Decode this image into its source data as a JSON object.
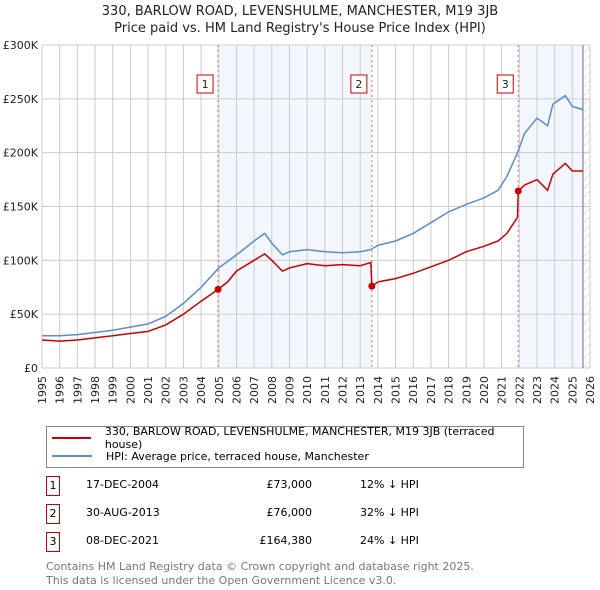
{
  "chart_data": {
    "type": "line",
    "title": "330, BARLOW ROAD, LEVENSHULME, MANCHESTER, M19 3JB",
    "subtitle": "Price paid vs. HM Land Registry's House Price Index (HPI)",
    "xlim": [
      1995,
      2026
    ],
    "ylim": [
      0,
      300000
    ],
    "x_ticks": [
      "1995",
      "1996",
      "1997",
      "1998",
      "1999",
      "2000",
      "2001",
      "2002",
      "2003",
      "2004",
      "2005",
      "2006",
      "2007",
      "2008",
      "2009",
      "2010",
      "2011",
      "2012",
      "2013",
      "2014",
      "2015",
      "2016",
      "2017",
      "2018",
      "2019",
      "2020",
      "2021",
      "2022",
      "2023",
      "2024",
      "2025",
      "2026"
    ],
    "y_ticks": [
      {
        "v": 0,
        "label": "£0"
      },
      {
        "v": 50000,
        "label": "£50K"
      },
      {
        "v": 100000,
        "label": "£100K"
      },
      {
        "v": 150000,
        "label": "£150K"
      },
      {
        "v": 200000,
        "label": "£200K"
      },
      {
        "v": 250000,
        "label": "£250K"
      },
      {
        "v": 300000,
        "label": "£300K"
      }
    ],
    "grid": true,
    "data_end": 2025.6,
    "series": [
      {
        "name": "330, BARLOW ROAD, LEVENSHULME, MANCHESTER, M19 3JB (terraced house)",
        "color": "#cc0000",
        "x": [
          1995,
          1996,
          1997,
          1998,
          1999,
          2000,
          2001,
          2002,
          2003,
          2004,
          2004.96,
          2005.5,
          2006,
          2007,
          2007.6,
          2008,
          2008.6,
          2009,
          2010,
          2011,
          2012,
          2013,
          2013.6,
          2013.66,
          2014,
          2015,
          2016,
          2017,
          2018,
          2019,
          2020,
          2020.8,
          2021.3,
          2021.9,
          2021.94,
          2022.3,
          2023,
          2023.6,
          2023.9,
          2024.6,
          2025,
          2025.6
        ],
        "y": [
          26000,
          25000,
          26000,
          28000,
          30000,
          32000,
          34000,
          40000,
          50000,
          62000,
          73000,
          80000,
          90000,
          100000,
          106000,
          100000,
          90000,
          93000,
          97000,
          95000,
          96000,
          95000,
          98000,
          76000,
          80000,
          83000,
          88000,
          94000,
          100000,
          108000,
          113000,
          118000,
          125000,
          140000,
          164380,
          170000,
          175000,
          165000,
          180000,
          190000,
          183000,
          183000
        ]
      },
      {
        "name": "HPI: Average price, terraced house, Manchester",
        "color": "#5b8bd0",
        "x": [
          1995,
          1996,
          1997,
          1998,
          1999,
          2000,
          2001,
          2002,
          2003,
          2004,
          2005,
          2006,
          2007,
          2007.6,
          2008,
          2008.6,
          2009,
          2010,
          2011,
          2012,
          2013,
          2013.6,
          2014,
          2015,
          2016,
          2017,
          2018,
          2019,
          2020,
          2020.8,
          2021.3,
          2021.9,
          2022.3,
          2023,
          2023.6,
          2023.9,
          2024.6,
          2025,
          2025.6
        ],
        "y": [
          30000,
          30000,
          31000,
          33000,
          35000,
          38000,
          41000,
          48000,
          60000,
          75000,
          93000,
          105000,
          118000,
          125000,
          116000,
          105000,
          108000,
          110000,
          108000,
          107000,
          108000,
          110000,
          114000,
          118000,
          125000,
          135000,
          145000,
          152000,
          158000,
          165000,
          178000,
          200000,
          218000,
          232000,
          225000,
          245000,
          253000,
          243000,
          240000
        ]
      }
    ],
    "sales": [
      {
        "id": "1",
        "x": 2004.96,
        "y": 73000,
        "date": "17-DEC-2004",
        "price": "£73,000",
        "hpi": "12% ↓ HPI"
      },
      {
        "id": "2",
        "x": 2013.66,
        "y": 76000,
        "date": "30-AUG-2013",
        "price": "£76,000",
        "hpi": "32% ↓ HPI"
      },
      {
        "id": "3",
        "x": 2021.94,
        "y": 164380,
        "date": "08-DEC-2021",
        "price": "£164,380",
        "hpi": "24% ↓ HPI"
      }
    ]
  },
  "legend": {
    "red": "330, BARLOW ROAD, LEVENSHULME, MANCHESTER, M19 3JB (terraced house)",
    "blue": "HPI: Average price, terraced house, Manchester"
  },
  "footer": {
    "line1": "Contains HM Land Registry data © Crown copyright and database right 2025.",
    "line2": "This data is licensed under the Open Government Licence v3.0."
  }
}
